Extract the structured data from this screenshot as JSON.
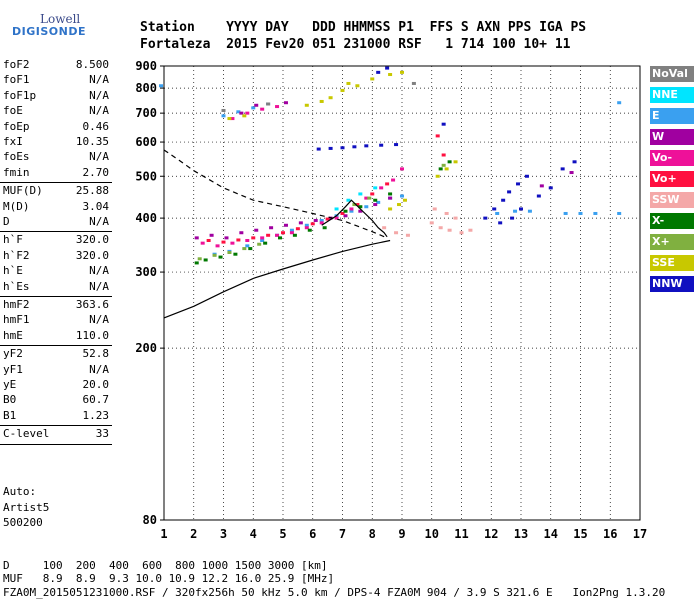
{
  "logo": {
    "brand": "Lowell",
    "product": "DIGISONDE"
  },
  "header": {
    "line1": "Station    YYYY DAY   DDD HHMMSS P1  FFS S AXN PPS IGA PS",
    "line2": "Fortaleza  2015 Fev20 051 231000 RSF   1 714 100 10+ 11"
  },
  "params": [
    {
      "k": "foF2",
      "v": "8.500"
    },
    {
      "k": "foF1",
      "v": "N/A"
    },
    {
      "k": "foF1p",
      "v": "N/A"
    },
    {
      "k": "foE",
      "v": "N/A"
    },
    {
      "k": "foEp",
      "v": "0.46"
    },
    {
      "k": "fxI",
      "v": "10.35"
    },
    {
      "k": "foEs",
      "v": "N/A"
    },
    {
      "k": "fmin",
      "v": "2.70"
    },
    {
      "k": "MUF(D)",
      "v": "25.88"
    },
    {
      "k": "M(D)",
      "v": "3.04"
    },
    {
      "k": "D",
      "v": "N/A"
    },
    {
      "k": "h`F",
      "v": "320.0"
    },
    {
      "k": "h`F2",
      "v": "320.0"
    },
    {
      "k": "h`E",
      "v": "N/A"
    },
    {
      "k": "h`Es",
      "v": "N/A"
    },
    {
      "k": "hmF2",
      "v": "363.6"
    },
    {
      "k": "hmF1",
      "v": "N/A"
    },
    {
      "k": "hmE",
      "v": "110.0"
    },
    {
      "k": "yF2",
      "v": "52.8"
    },
    {
      "k": "yF1",
      "v": "N/A"
    },
    {
      "k": "yE",
      "v": "20.0"
    },
    {
      "k": "B0",
      "v": "60.7"
    },
    {
      "k": "B1",
      "v": "1.23"
    },
    {
      "k": "C-level",
      "v": "33"
    }
  ],
  "autoscaling": {
    "line1": "Auto:",
    "line2": "Artist5",
    "line3": "500200"
  },
  "legend": [
    {
      "label": "NoVal",
      "color": "#808080"
    },
    {
      "label": "NNE",
      "color": "#00e5ff"
    },
    {
      "label": "E",
      "color": "#3aa0f0"
    },
    {
      "label": "W",
      "color": "#a000a0"
    },
    {
      "label": "Vo-",
      "color": "#ee1199"
    },
    {
      "label": "Vo+",
      "color": "#ff1040"
    },
    {
      "label": "SSW",
      "color": "#f4a8a8"
    },
    {
      "label": "X-",
      "color": "#007800"
    },
    {
      "label": "X+",
      "color": "#80b040"
    },
    {
      "label": "SSE",
      "color": "#c8c800"
    },
    {
      "label": "NNW",
      "color": "#1010c0"
    }
  ],
  "footer": {
    "line1": "D     100  200  400  600  800 1000 1500 3000 [km]",
    "line2": "MUF   8.9  8.9  9.3 10.0 10.9 12.2 16.0 25.9 [MHz]",
    "line3": "FZA0M_2015051231000.RSF / 320fx256h 50 kHz 5.0 km / DPS-4 FZA0M 904 / 3.9 S 321.6 E   Ion2Png 1.3.20"
  },
  "chart_data": {
    "type": "scatter",
    "x_ticks": [
      1,
      2,
      3,
      4,
      5,
      6,
      7,
      8,
      9,
      10,
      11,
      12,
      13,
      14,
      15,
      16,
      17
    ],
    "y_ticks": [
      80,
      200,
      300,
      400,
      500,
      600,
      700,
      800,
      900
    ],
    "xlim": [
      1,
      17
    ],
    "ylim": [
      80,
      900
    ],
    "grid": true,
    "legend_position": "right",
    "series": [
      {
        "name": "E",
        "color": "#3aa0f0",
        "points": [
          [
            2.7,
            330
          ],
          [
            3.2,
            335
          ],
          [
            3.8,
            345
          ],
          [
            4.3,
            355
          ],
          [
            4.8,
            365
          ],
          [
            5.3,
            375
          ],
          [
            5.8,
            385
          ],
          [
            6.3,
            395
          ],
          [
            6.8,
            405
          ],
          [
            7.3,
            415
          ],
          [
            7.8,
            425
          ],
          [
            8.2,
            435
          ],
          [
            8.6,
            445
          ],
          [
            9.0,
            450
          ],
          [
            3.0,
            690
          ],
          [
            3.5,
            705
          ],
          [
            4.0,
            720
          ],
          [
            4.5,
            735
          ],
          [
            12.2,
            410
          ],
          [
            12.8,
            415
          ],
          [
            13.3,
            415
          ],
          [
            14.5,
            410
          ],
          [
            15.0,
            410
          ],
          [
            15.5,
            410
          ],
          [
            16.3,
            410
          ],
          [
            0.9,
            810
          ],
          [
            16.3,
            740
          ]
        ]
      },
      {
        "name": "W",
        "color": "#a000a0",
        "points": [
          [
            2.1,
            360
          ],
          [
            2.6,
            365
          ],
          [
            3.1,
            360
          ],
          [
            3.6,
            370
          ],
          [
            4.1,
            375
          ],
          [
            4.6,
            380
          ],
          [
            5.1,
            385
          ],
          [
            5.6,
            390
          ],
          [
            6.1,
            395
          ],
          [
            6.6,
            400
          ],
          [
            7.1,
            405
          ],
          [
            7.6,
            415
          ],
          [
            8.1,
            430
          ],
          [
            8.6,
            445
          ],
          [
            3.6,
            700
          ],
          [
            4.1,
            730
          ],
          [
            5.1,
            740
          ],
          [
            13.7,
            475
          ],
          [
            14.7,
            510
          ]
        ]
      },
      {
        "name": "Vo-",
        "color": "#ee1199",
        "points": [
          [
            2.3,
            350
          ],
          [
            2.8,
            345
          ],
          [
            3.3,
            350
          ],
          [
            3.8,
            355
          ],
          [
            4.3,
            360
          ],
          [
            4.8,
            365
          ],
          [
            5.3,
            370
          ],
          [
            5.8,
            380
          ],
          [
            6.3,
            390
          ],
          [
            6.8,
            400
          ],
          [
            7.3,
            420
          ],
          [
            7.8,
            445
          ],
          [
            8.3,
            470
          ],
          [
            8.7,
            490
          ],
          [
            9.0,
            520
          ],
          [
            3.3,
            680
          ],
          [
            3.8,
            700
          ],
          [
            4.3,
            715
          ],
          [
            4.8,
            725
          ]
        ]
      },
      {
        "name": "Vo+",
        "color": "#ff1040",
        "points": [
          [
            2.5,
            355
          ],
          [
            3.0,
            352
          ],
          [
            3.5,
            356
          ],
          [
            4.0,
            360
          ],
          [
            4.5,
            365
          ],
          [
            5.0,
            370
          ],
          [
            5.5,
            378
          ],
          [
            6.0,
            388
          ],
          [
            6.5,
            398
          ],
          [
            7.0,
            410
          ],
          [
            7.5,
            430
          ],
          [
            8.0,
            455
          ],
          [
            8.5,
            480
          ],
          [
            10.2,
            620
          ],
          [
            10.4,
            560
          ]
        ]
      },
      {
        "name": "SSW",
        "color": "#f4a8a8",
        "points": [
          [
            8.4,
            380
          ],
          [
            8.8,
            370
          ],
          [
            9.2,
            365
          ],
          [
            10.0,
            390
          ],
          [
            10.3,
            380
          ],
          [
            10.6,
            375
          ],
          [
            11.0,
            370
          ],
          [
            11.3,
            375
          ],
          [
            10.1,
            420
          ],
          [
            10.5,
            410
          ],
          [
            10.8,
            400
          ]
        ]
      },
      {
        "name": "X-",
        "color": "#007800",
        "points": [
          [
            2.1,
            315
          ],
          [
            2.4,
            320
          ],
          [
            2.9,
            325
          ],
          [
            3.4,
            330
          ],
          [
            3.9,
            340
          ],
          [
            4.4,
            350
          ],
          [
            4.9,
            360
          ],
          [
            5.4,
            365
          ],
          [
            5.9,
            375
          ],
          [
            6.4,
            380
          ],
          [
            7.1,
            415
          ],
          [
            7.6,
            425
          ],
          [
            8.1,
            440
          ],
          [
            8.6,
            455
          ],
          [
            10.3,
            520
          ],
          [
            10.6,
            540
          ]
        ]
      },
      {
        "name": "X+",
        "color": "#80b040",
        "points": [
          [
            2.2,
            322
          ],
          [
            2.7,
            328
          ],
          [
            3.2,
            333
          ],
          [
            3.7,
            340
          ],
          [
            4.2,
            348
          ],
          [
            7.4,
            430
          ],
          [
            7.9,
            445
          ],
          [
            10.4,
            530
          ]
        ]
      },
      {
        "name": "SSE",
        "color": "#c8c800",
        "points": [
          [
            8.6,
            420
          ],
          [
            8.9,
            430
          ],
          [
            9.1,
            440
          ],
          [
            10.2,
            500
          ],
          [
            10.5,
            520
          ],
          [
            10.8,
            540
          ],
          [
            7.2,
            820
          ],
          [
            7.5,
            810
          ],
          [
            8.0,
            840
          ],
          [
            8.6,
            860
          ],
          [
            9.0,
            870
          ],
          [
            6.6,
            760
          ],
          [
            7.0,
            790
          ],
          [
            5.8,
            730
          ],
          [
            6.3,
            745
          ],
          [
            3.2,
            680
          ],
          [
            3.7,
            690
          ]
        ]
      },
      {
        "name": "NNW",
        "color": "#1010c0",
        "points": [
          [
            6.2,
            578
          ],
          [
            6.6,
            580
          ],
          [
            7.0,
            582
          ],
          [
            7.4,
            585
          ],
          [
            7.8,
            588
          ],
          [
            8.3,
            590
          ],
          [
            8.8,
            592
          ],
          [
            10.4,
            660
          ],
          [
            11.8,
            400
          ],
          [
            12.1,
            420
          ],
          [
            12.4,
            440
          ],
          [
            12.6,
            460
          ],
          [
            12.9,
            480
          ],
          [
            13.2,
            500
          ],
          [
            13.0,
            420
          ],
          [
            12.7,
            400
          ],
          [
            12.3,
            390
          ],
          [
            13.6,
            450
          ],
          [
            14.0,
            470
          ],
          [
            14.4,
            520
          ],
          [
            14.8,
            540
          ],
          [
            8.2,
            870
          ],
          [
            8.5,
            890
          ]
        ]
      },
      {
        "name": "NNE",
        "color": "#00e5ff",
        "points": [
          [
            6.8,
            420
          ],
          [
            7.2,
            440
          ],
          [
            7.6,
            455
          ],
          [
            8.1,
            470
          ]
        ]
      },
      {
        "name": "NoVal",
        "color": "#808080",
        "points": [
          [
            3.0,
            710
          ],
          [
            4.5,
            735
          ],
          [
            9.4,
            820
          ]
        ]
      }
    ],
    "curves": [
      {
        "style": "solid",
        "points": [
          [
            1,
            235
          ],
          [
            2,
            250
          ],
          [
            3,
            270
          ],
          [
            4,
            290
          ],
          [
            5,
            305
          ],
          [
            6,
            320
          ],
          [
            7,
            335
          ],
          [
            8,
            348
          ],
          [
            8.6,
            355
          ]
        ]
      },
      {
        "style": "dashed",
        "points": [
          [
            1,
            575
          ],
          [
            1.5,
            545
          ],
          [
            2,
            515
          ],
          [
            3,
            470
          ],
          [
            4,
            440
          ],
          [
            5,
            425
          ],
          [
            6,
            410
          ],
          [
            7,
            395
          ],
          [
            8,
            372
          ],
          [
            8.5,
            360
          ]
        ]
      },
      {
        "style": "solid",
        "points": [
          [
            6.3,
            385
          ],
          [
            6.8,
            405
          ],
          [
            7.1,
            425
          ],
          [
            7.3,
            440
          ],
          [
            7.6,
            420
          ],
          [
            8.0,
            395
          ],
          [
            8.2,
            380
          ],
          [
            8.4,
            370
          ],
          [
            8.5,
            362
          ]
        ]
      }
    ]
  }
}
